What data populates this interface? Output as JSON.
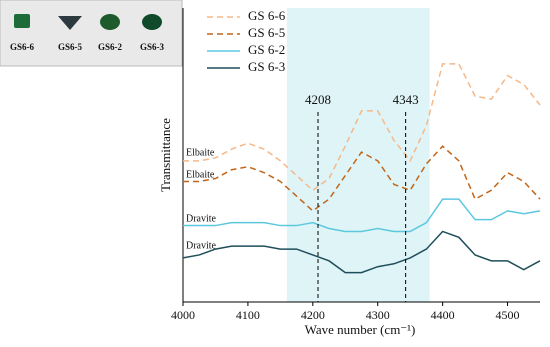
{
  "chart_data": {
    "type": "line",
    "xlabel": "Wave number (cm⁻¹)",
    "ylabel": "Transmittance",
    "x": [
      4000,
      4025,
      4050,
      4075,
      4100,
      4125,
      4150,
      4175,
      4200,
      4225,
      4250,
      4275,
      4300,
      4325,
      4350,
      4375,
      4400,
      4425,
      4450,
      4475,
      4500,
      4525,
      4550
    ],
    "series": [
      {
        "name": "GS 6-6",
        "color": "#f5b889",
        "dash": true,
        "values": [
          48,
          48,
          49,
          52,
          54,
          52,
          48,
          43,
          38,
          42,
          53,
          65,
          65,
          55,
          48,
          60,
          81,
          81,
          70,
          69,
          77,
          74,
          67
        ]
      },
      {
        "name": "GS 6-5",
        "color": "#c0661a",
        "dash": true,
        "values": [
          41,
          41,
          42,
          45,
          46,
          44,
          41,
          36,
          31,
          35,
          43,
          51,
          48,
          40,
          38,
          47,
          53,
          48,
          35,
          38,
          44,
          41,
          35
        ]
      },
      {
        "name": "GS 6-2",
        "color": "#5cc8e0",
        "dash": false,
        "values": [
          26,
          26,
          26,
          27,
          27,
          27,
          26,
          26,
          27,
          25,
          24,
          24,
          25,
          24,
          24,
          27,
          35,
          35,
          28,
          28,
          31,
          30,
          31
        ]
      },
      {
        "name": "GS 6-3",
        "color": "#1f4e5a",
        "dash": false,
        "values": [
          15,
          16,
          18,
          19,
          19,
          19,
          18,
          18,
          16,
          14,
          10,
          10,
          12,
          13,
          15,
          18,
          24,
          22,
          16,
          14,
          14,
          11,
          14
        ]
      }
    ],
    "xlim": [
      4000,
      4550
    ],
    "xticks": [
      4000,
      4100,
      4200,
      4300,
      4400,
      4500
    ],
    "ylim": [
      0,
      100
    ],
    "shaded_range": [
      4160,
      4380
    ],
    "shade_color": "#dff4f7",
    "markers": [
      4208,
      4343
    ],
    "annotations": [
      "Elbaite",
      "Elbaite",
      "Dravite",
      "Dravite"
    ],
    "legend": "upper-left",
    "inset_labels": [
      "GS6-6",
      "GS6-5",
      "GS6-2",
      "GS6-3"
    ]
  }
}
